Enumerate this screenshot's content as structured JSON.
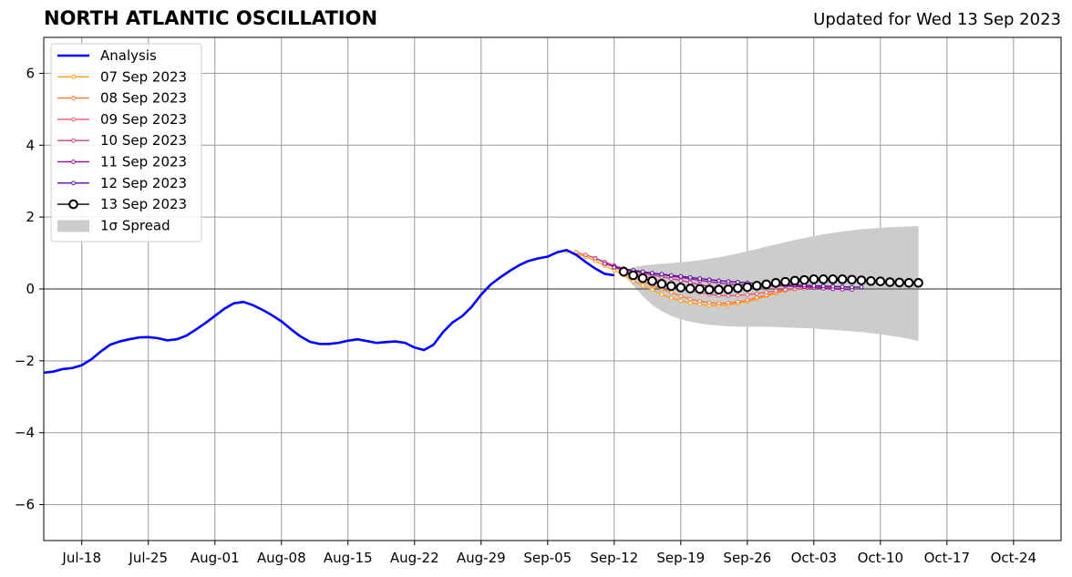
{
  "header": {
    "title": "NORTH ATLANTIC OSCILLATION",
    "updated": "Updated for Wed 13 Sep 2023"
  },
  "chart_data": {
    "type": "line",
    "title": "NORTH ATLANTIC OSCILLATION",
    "subtitle": "Updated for Wed 13 Sep 2023",
    "xlabel": "",
    "ylabel": "",
    "ylim": [
      -7,
      7
    ],
    "xlim": [
      "2023-07-14",
      "2023-10-29"
    ],
    "grid": true,
    "legend_position": "top-left",
    "x_ticks": [
      "2023-07-18",
      "2023-07-25",
      "2023-08-01",
      "2023-08-08",
      "2023-08-15",
      "2023-08-22",
      "2023-08-29",
      "2023-09-05",
      "2023-09-12",
      "2023-09-19",
      "2023-09-26",
      "2023-10-03",
      "2023-10-10",
      "2023-10-17",
      "2023-10-24"
    ],
    "x_tick_labels": [
      "Jul-18",
      "Jul-25",
      "Aug-01",
      "Aug-08",
      "Aug-15",
      "Aug-22",
      "Aug-29",
      "Sep-05",
      "Sep-12",
      "Sep-19",
      "Sep-26",
      "Oct-03",
      "Oct-10",
      "Oct-17",
      "Oct-24"
    ],
    "y_ticks": [
      -6,
      -4,
      -2,
      0,
      2,
      4,
      6
    ],
    "y_tick_labels": [
      "−6",
      "−4",
      "−2",
      "0",
      "2",
      "4",
      "6"
    ],
    "analysis": {
      "name": "Analysis",
      "color": "#0000ff",
      "start": "2023-07-14",
      "step_days": 1,
      "values": [
        -2.33,
        -2.3,
        -2.23,
        -2.2,
        -2.12,
        -1.96,
        -1.74,
        -1.55,
        -1.46,
        -1.4,
        -1.35,
        -1.34,
        -1.37,
        -1.43,
        -1.4,
        -1.3,
        -1.13,
        -0.95,
        -0.75,
        -0.55,
        -0.4,
        -0.36,
        -0.45,
        -0.58,
        -0.73,
        -0.9,
        -1.12,
        -1.32,
        -1.47,
        -1.53,
        -1.53,
        -1.5,
        -1.44,
        -1.4,
        -1.45,
        -1.5,
        -1.48,
        -1.46,
        -1.5,
        -1.63,
        -1.7,
        -1.55,
        -1.2,
        -0.93,
        -0.76,
        -0.5,
        -0.16,
        0.12,
        0.32,
        0.5,
        0.66,
        0.78,
        0.85,
        0.9,
        1.02,
        1.08,
        0.95,
        0.75,
        0.57,
        0.42,
        0.38
      ]
    },
    "forecasts": [
      {
        "name": "07 Sep 2023",
        "color": "#ffa01a",
        "start": "2023-09-07",
        "values": [
          1.05,
          0.98,
          0.9,
          0.78,
          0.65,
          0.52,
          0.38,
          0.22,
          0.1,
          -0.02,
          -0.15,
          -0.25,
          -0.33,
          -0.39,
          -0.43,
          -0.46,
          -0.46,
          -0.44,
          -0.4,
          -0.35,
          -0.28,
          -0.2,
          -0.12,
          -0.05,
          0.0,
          0.03,
          0.05
        ]
      },
      {
        "name": "08 Sep 2023",
        "color": "#ff7a34",
        "start": "2023-09-08",
        "values": [
          1.02,
          0.95,
          0.85,
          0.73,
          0.6,
          0.47,
          0.34,
          0.21,
          0.1,
          0.0,
          -0.1,
          -0.2,
          -0.28,
          -0.34,
          -0.38,
          -0.4,
          -0.39,
          -0.36,
          -0.31,
          -0.24,
          -0.17,
          -0.1,
          -0.04,
          0.0,
          0.03,
          0.05,
          0.06
        ]
      },
      {
        "name": "09 Sep 2023",
        "color": "#e85b6e",
        "start": "2023-09-09",
        "values": [
          0.95,
          0.86,
          0.75,
          0.64,
          0.54,
          0.45,
          0.36,
          0.28,
          0.2,
          0.12,
          0.04,
          -0.04,
          -0.1,
          -0.15,
          -0.18,
          -0.19,
          -0.18,
          -0.16,
          -0.13,
          -0.09,
          -0.05,
          -0.02,
          0.0,
          0.02,
          0.03,
          0.04,
          0.05
        ]
      },
      {
        "name": "10 Sep 2023",
        "color": "#c43d8e",
        "start": "2023-09-10",
        "values": [
          0.85,
          0.75,
          0.65,
          0.57,
          0.5,
          0.44,
          0.39,
          0.34,
          0.29,
          0.24,
          0.18,
          0.12,
          0.07,
          0.03,
          0.0,
          0.0,
          0.02,
          0.04,
          0.06,
          0.08,
          0.09,
          0.09,
          0.08,
          0.06,
          0.04,
          0.02,
          0.01
        ]
      },
      {
        "name": "11 Sep 2023",
        "color": "#9a189e",
        "start": "2023-09-11",
        "values": [
          0.7,
          0.62,
          0.56,
          0.51,
          0.47,
          0.43,
          0.4,
          0.36,
          0.32,
          0.28,
          0.24,
          0.2,
          0.17,
          0.14,
          0.12,
          0.11,
          0.1,
          0.1,
          0.09,
          0.08,
          0.07,
          0.06,
          0.04,
          0.02,
          0.0,
          -0.01,
          -0.02
        ]
      },
      {
        "name": "12 Sep 2023",
        "color": "#5a0ca0",
        "start": "2023-09-12",
        "values": [
          0.6,
          0.56,
          0.52,
          0.48,
          0.44,
          0.41,
          0.38,
          0.35,
          0.32,
          0.29,
          0.26,
          0.23,
          0.21,
          0.19,
          0.17,
          0.15,
          0.14,
          0.13,
          0.12,
          0.11,
          0.1,
          0.09,
          0.08,
          0.07,
          0.06,
          0.05,
          0.05
        ]
      }
    ],
    "current_forecast": {
      "name": "13 Sep 2023",
      "color": "#000000",
      "start": "2023-09-13",
      "values": [
        0.48,
        0.38,
        0.3,
        0.22,
        0.14,
        0.08,
        0.04,
        0.01,
        0.0,
        -0.02,
        -0.02,
        -0.01,
        0.02,
        0.05,
        0.09,
        0.13,
        0.17,
        0.2,
        0.23,
        0.25,
        0.27,
        0.27,
        0.27,
        0.27,
        0.26,
        0.24,
        0.22,
        0.21,
        0.19,
        0.18,
        0.17,
        0.17
      ]
    },
    "spread": {
      "name": "1σ Spread",
      "color": "#cccccc",
      "start": "2023-09-13",
      "upper": [
        0.5,
        0.6,
        0.65,
        0.68,
        0.7,
        0.72,
        0.74,
        0.77,
        0.8,
        0.84,
        0.88,
        0.93,
        0.99,
        1.05,
        1.11,
        1.18,
        1.24,
        1.3,
        1.36,
        1.42,
        1.47,
        1.52,
        1.56,
        1.6,
        1.63,
        1.66,
        1.68,
        1.7,
        1.72,
        1.73,
        1.74,
        1.75
      ],
      "lower": [
        0.4,
        0.1,
        -0.2,
        -0.45,
        -0.62,
        -0.75,
        -0.84,
        -0.91,
        -0.96,
        -1.0,
        -1.02,
        -1.04,
        -1.05,
        -1.05,
        -1.05,
        -1.05,
        -1.06,
        -1.07,
        -1.08,
        -1.09,
        -1.1,
        -1.12,
        -1.14,
        -1.16,
        -1.18,
        -1.2,
        -1.23,
        -1.26,
        -1.3,
        -1.34,
        -1.39,
        -1.45
      ]
    }
  }
}
